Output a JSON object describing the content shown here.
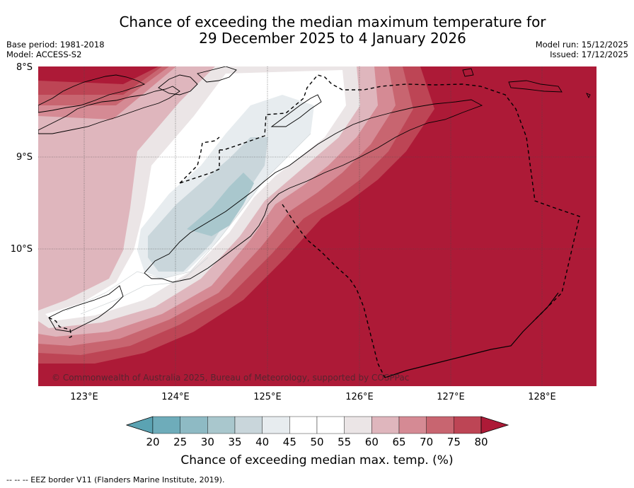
{
  "title_line1": "Chance of exceeding the median maximum temperature for",
  "title_line2": "29 December 2025 to 4 January 2026",
  "base_period": "Base period: 1981-2018",
  "model": "Model: ACCESS-S2",
  "model_run": "Model run: 15/12/2025",
  "issued": "Issued: 17/12/2025",
  "lat_labels": [
    "8°S",
    "9°S",
    "10°S"
  ],
  "lon_labels": [
    "123°E",
    "124°E",
    "125°E",
    "126°E",
    "127°E",
    "128°E"
  ],
  "copyright": "© Commonwealth of Australia 2025, Bureau of Meteorology, supported by COSPPac",
  "colorbar": {
    "ticks": [
      "20",
      "25",
      "30",
      "35",
      "40",
      "45",
      "50",
      "55",
      "60",
      "65",
      "70",
      "75",
      "80"
    ],
    "colors": [
      "#5ba3b3",
      "#6eacba",
      "#8ebac4",
      "#a9c7cd",
      "#c9d6db",
      "#e7ecef",
      "#ffffff",
      "#ffffff",
      "#ebe5e6",
      "#dfb6bd",
      "#d58a94",
      "#c86570",
      "#bd4555",
      "#ad1a37"
    ],
    "label": "Chance of exceeding median max. temp. (%)"
  },
  "footer": "--  --  -- EEZ border V11 (Flanders Marine Institute, 2019)."
}
